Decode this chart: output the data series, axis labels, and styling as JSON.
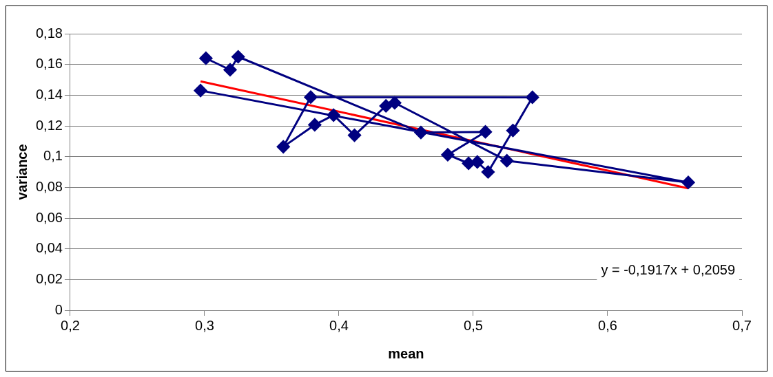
{
  "chart_data": {
    "type": "line",
    "xlabel": "mean",
    "ylabel": "variance",
    "xlim": [
      0.2,
      0.7
    ],
    "xticks": [
      {
        "value": 0.2,
        "label": "0,2"
      },
      {
        "value": 0.3,
        "label": "0,3"
      },
      {
        "value": 0.4,
        "label": "0,4"
      },
      {
        "value": 0.5,
        "label": "0,5"
      },
      {
        "value": 0.6,
        "label": "0,6"
      },
      {
        "value": 0.7,
        "label": "0,7"
      }
    ],
    "ylim": [
      0,
      0.18
    ],
    "yticks": [
      0,
      {
        "value": 0.02,
        "label": "0,02"
      },
      {
        "value": 0.04,
        "label": "0,04"
      },
      {
        "value": 0.06,
        "label": "0,06"
      },
      {
        "value": 0.08,
        "label": "0,08"
      },
      {
        "value": 0.1,
        "label": "0,1"
      },
      {
        "value": 0.12,
        "label": "0,12"
      },
      {
        "value": 0.14,
        "label": "0,14"
      },
      {
        "value": 0.16,
        "label": "0,16"
      },
      {
        "value": 0.18,
        "label": "0,18"
      }
    ],
    "grid": "y",
    "legend": false,
    "series": [
      {
        "type": "line",
        "color": "#000080",
        "marker": "diamond",
        "x": [
          0.301,
          0.319,
          0.325,
          0.461,
          0.509,
          0.481,
          0.4965,
          0.503,
          0.511,
          0.5295,
          0.544,
          0.379,
          0.3586,
          0.382,
          0.396,
          0.4116,
          0.435,
          0.4415,
          0.525,
          0.66,
          0.297
        ],
        "values": [
          0.164,
          0.1565,
          0.165,
          0.1157,
          0.1161,
          0.1012,
          0.0956,
          0.0965,
          0.09,
          0.117,
          0.1386,
          0.1387,
          0.1064,
          0.1207,
          0.127,
          0.1139,
          0.133,
          0.135,
          0.0973,
          0.0832,
          0.143
        ]
      },
      {
        "type": "line",
        "color": "#ff0000",
        "marker": "none",
        "x": [
          0.297,
          0.66
        ],
        "values": [
          0.149,
          0.0794
        ]
      }
    ],
    "annotations": [
      "y = -0,1917x + 0,2059"
    ]
  }
}
